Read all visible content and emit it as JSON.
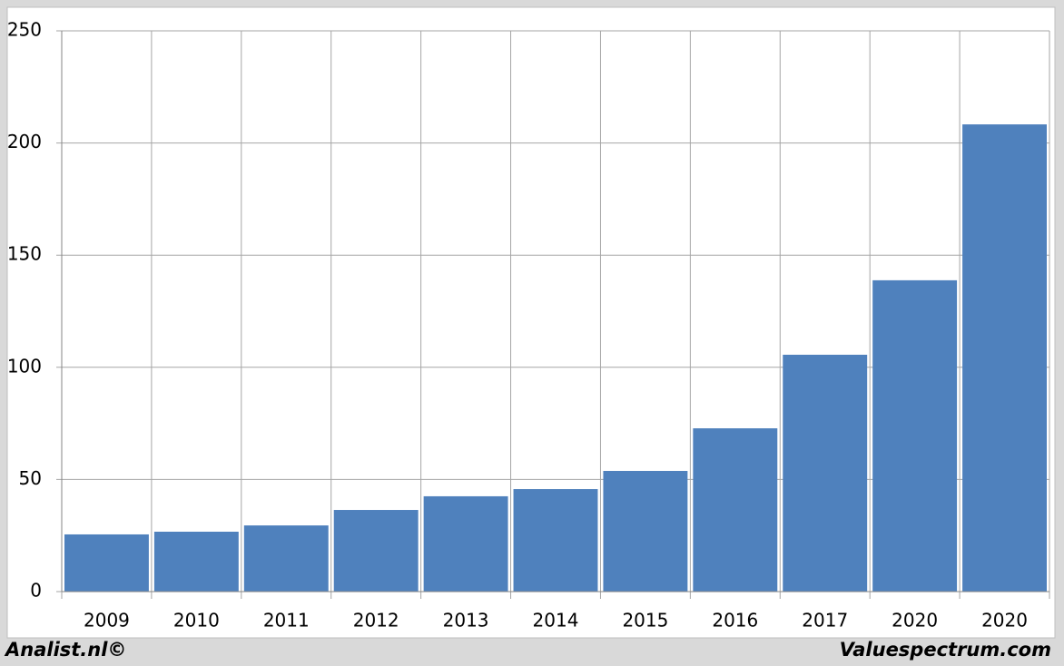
{
  "chart_data": {
    "type": "bar",
    "categories": [
      "2009",
      "2010",
      "2011",
      "2012",
      "2013",
      "2014",
      "2015",
      "2016",
      "2017",
      "2020",
      "2020"
    ],
    "values": [
      25.5,
      26.7,
      29.5,
      36.4,
      42.5,
      45.7,
      53.8,
      72.8,
      105.6,
      138.8,
      208.3
    ],
    "color": "#4f81bd",
    "ylim": [
      0,
      250
    ],
    "yticks": [
      0,
      50,
      100,
      150,
      200,
      250
    ],
    "grid": true
  },
  "footer": {
    "left": "Analist.nl©",
    "right": "Valuespectrum.com"
  }
}
